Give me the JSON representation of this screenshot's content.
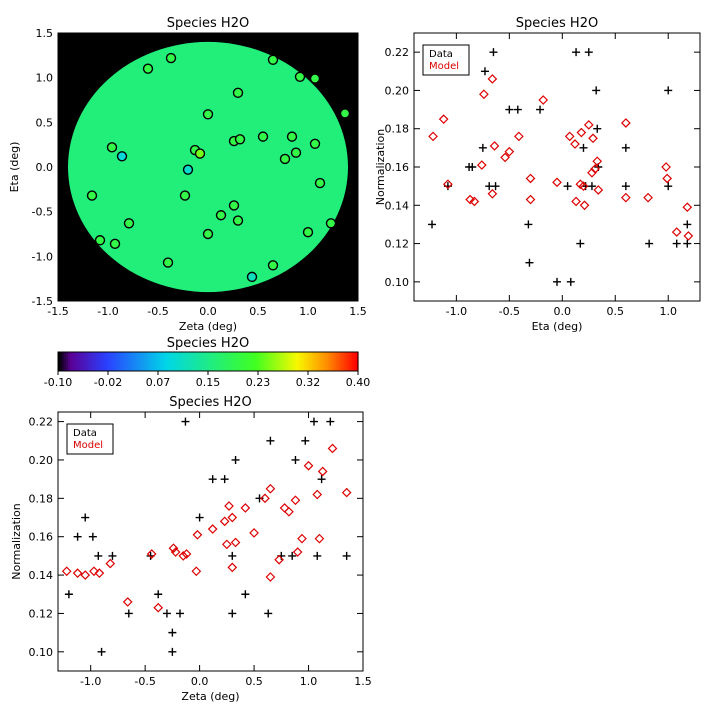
{
  "chart_data": [
    {
      "type": "scatter",
      "title": "Species H2O",
      "xlabel": "Zeta (deg)",
      "ylabel": "Eta (deg)",
      "xlim": [
        -1.5,
        1.5
      ],
      "ylim": [
        -1.5,
        1.5
      ],
      "x_ticks": [
        "-1.5",
        "-1.0",
        "-0.5",
        "0.0",
        "0.5",
        "1.0",
        "1.5"
      ],
      "y_ticks": [
        "-1.5",
        "-1.0",
        "-0.5",
        "0.0",
        "0.5",
        "1.0",
        "1.5"
      ],
      "background": {
        "outside": "#000000",
        "field_radius_deg": 1.4,
        "field_color": "#22ee7a"
      },
      "points": [
        {
          "x": -0.6,
          "y": 1.1,
          "value": 0.2
        },
        {
          "x": -0.37,
          "y": 1.22,
          "value": 0.2
        },
        {
          "x": 0.65,
          "y": 1.2,
          "value": 0.2
        },
        {
          "x": 0.92,
          "y": 1.01,
          "value": 0.2
        },
        {
          "x": 1.07,
          "y": 0.99,
          "value": 0.2
        },
        {
          "x": 0.3,
          "y": 0.83,
          "value": 0.2
        },
        {
          "x": 1.37,
          "y": 0.6,
          "value": 0.2
        },
        {
          "x": 0.0,
          "y": 0.59,
          "value": 0.2
        },
        {
          "x": 0.55,
          "y": 0.34,
          "value": 0.2
        },
        {
          "x": 0.84,
          "y": 0.34,
          "value": 0.2
        },
        {
          "x": 0.26,
          "y": 0.29,
          "value": 0.2
        },
        {
          "x": 0.32,
          "y": 0.31,
          "value": 0.2
        },
        {
          "x": -0.96,
          "y": 0.22,
          "value": 0.2
        },
        {
          "x": -0.86,
          "y": 0.12,
          "value": 0.09
        },
        {
          "x": -0.13,
          "y": 0.19,
          "value": 0.2
        },
        {
          "x": -0.08,
          "y": 0.15,
          "value": 0.25
        },
        {
          "x": 0.88,
          "y": 0.16,
          "value": 0.2
        },
        {
          "x": 0.77,
          "y": 0.09,
          "value": 0.2
        },
        {
          "x": 1.07,
          "y": 0.26,
          "value": 0.2
        },
        {
          "x": -0.2,
          "y": -0.03,
          "value": 0.1
        },
        {
          "x": 1.12,
          "y": -0.18,
          "value": 0.2
        },
        {
          "x": -1.16,
          "y": -0.32,
          "value": 0.2
        },
        {
          "x": -0.23,
          "y": -0.32,
          "value": 0.2
        },
        {
          "x": 0.26,
          "y": -0.43,
          "value": 0.2
        },
        {
          "x": 0.13,
          "y": -0.54,
          "value": 0.2
        },
        {
          "x": 0.3,
          "y": -0.6,
          "value": 0.2
        },
        {
          "x": -0.79,
          "y": -0.63,
          "value": 0.2
        },
        {
          "x": 1.23,
          "y": -0.63,
          "value": 0.2
        },
        {
          "x": 1.0,
          "y": -0.73,
          "value": 0.2
        },
        {
          "x": 0.0,
          "y": -0.75,
          "value": 0.2
        },
        {
          "x": -1.08,
          "y": -0.82,
          "value": 0.2
        },
        {
          "x": -0.93,
          "y": -0.86,
          "value": 0.2
        },
        {
          "x": -0.4,
          "y": -1.07,
          "value": 0.2
        },
        {
          "x": 0.65,
          "y": -1.1,
          "value": 0.2
        },
        {
          "x": 0.44,
          "y": -1.23,
          "value": 0.11
        }
      ]
    },
    {
      "type": "colorbar",
      "title": "Species H2O",
      "range": [
        -0.1,
        0.4
      ],
      "tick_labels": [
        "-0.10",
        "-0.02",
        "0.07",
        "0.15",
        "0.23",
        "0.32",
        "0.40"
      ]
    },
    {
      "type": "scatter",
      "title": "Species H2O",
      "xlabel": "Eta (deg)",
      "ylabel": "Normalization",
      "xlim": [
        -1.4,
        1.3
      ],
      "ylim": [
        0.09,
        0.23
      ],
      "x_ticks": [
        "-1.0",
        "-0.5",
        "0.0",
        "0.5",
        "1.0"
      ],
      "y_ticks": [
        "0.10",
        "0.12",
        "0.14",
        "0.16",
        "0.18",
        "0.20",
        "0.22"
      ],
      "legend": {
        "position": "top-left",
        "entries": [
          "Data",
          "Model"
        ]
      },
      "series": [
        {
          "name": "Data",
          "marker": "plus",
          "color": "#000000",
          "points": [
            [
              -1.23,
              0.13
            ],
            [
              -1.1,
              0.21
            ],
            [
              -1.08,
              0.15
            ],
            [
              -0.88,
              0.16
            ],
            [
              -0.85,
              0.16
            ],
            [
              -0.75,
              0.17
            ],
            [
              -0.73,
              0.21
            ],
            [
              -0.69,
              0.15
            ],
            [
              -0.65,
              0.22
            ],
            [
              -0.63,
              0.15
            ],
            [
              -0.5,
              0.19
            ],
            [
              -0.42,
              0.19
            ],
            [
              -0.32,
              0.13
            ],
            [
              -0.31,
              0.11
            ],
            [
              -0.21,
              0.19
            ],
            [
              -0.05,
              0.1
            ],
            [
              0.05,
              0.15
            ],
            [
              0.08,
              0.1
            ],
            [
              0.13,
              0.22
            ],
            [
              0.17,
              0.12
            ],
            [
              0.2,
              0.17
            ],
            [
              0.22,
              0.15
            ],
            [
              0.25,
              0.22
            ],
            [
              0.28,
              0.15
            ],
            [
              0.32,
              0.2
            ],
            [
              0.33,
              0.18
            ],
            [
              0.34,
              0.16
            ],
            [
              0.6,
              0.17
            ],
            [
              0.6,
              0.15
            ],
            [
              0.82,
              0.12
            ],
            [
              1.0,
              0.15
            ],
            [
              1.0,
              0.2
            ],
            [
              1.08,
              0.12
            ],
            [
              1.18,
              0.13
            ],
            [
              1.18,
              0.12
            ]
          ]
        },
        {
          "name": "Model",
          "marker": "diamond",
          "color": "#dd0000",
          "points": [
            [
              -1.22,
              0.176
            ],
            [
              -1.12,
              0.185
            ],
            [
              -1.08,
              0.151
            ],
            [
              -0.87,
              0.143
            ],
            [
              -0.83,
              0.142
            ],
            [
              -0.76,
              0.161
            ],
            [
              -0.74,
              0.198
            ],
            [
              -0.66,
              0.206
            ],
            [
              -0.66,
              0.146
            ],
            [
              -0.64,
              0.171
            ],
            [
              -0.54,
              0.165
            ],
            [
              -0.5,
              0.168
            ],
            [
              -0.41,
              0.176
            ],
            [
              -0.3,
              0.154
            ],
            [
              -0.3,
              0.143
            ],
            [
              -0.18,
              0.195
            ],
            [
              -0.05,
              0.152
            ],
            [
              0.07,
              0.176
            ],
            [
              0.12,
              0.172
            ],
            [
              0.13,
              0.142
            ],
            [
              0.17,
              0.151
            ],
            [
              0.18,
              0.178
            ],
            [
              0.2,
              0.15
            ],
            [
              0.21,
              0.14
            ],
            [
              0.25,
              0.182
            ],
            [
              0.28,
              0.157
            ],
            [
              0.29,
              0.175
            ],
            [
              0.31,
              0.159
            ],
            [
              0.33,
              0.163
            ],
            [
              0.34,
              0.148
            ],
            [
              0.6,
              0.183
            ],
            [
              0.6,
              0.144
            ],
            [
              0.81,
              0.144
            ],
            [
              0.98,
              0.16
            ],
            [
              0.99,
              0.154
            ],
            [
              1.08,
              0.126
            ],
            [
              1.18,
              0.139
            ],
            [
              1.19,
              0.124
            ]
          ]
        }
      ]
    },
    {
      "type": "scatter",
      "title": "Species H2O",
      "xlabel": "Zeta (deg)",
      "ylabel": "Normalization",
      "xlim": [
        -1.3,
        1.5
      ],
      "ylim": [
        0.09,
        0.225
      ],
      "x_ticks": [
        "-1.0",
        "-0.5",
        "0.0",
        "0.5",
        "1.0",
        "1.5"
      ],
      "y_ticks": [
        "0.10",
        "0.12",
        "0.14",
        "0.16",
        "0.18",
        "0.20",
        "0.22"
      ],
      "legend": {
        "position": "top-left",
        "entries": [
          "Data",
          "Model"
        ]
      },
      "series": [
        {
          "name": "Data",
          "marker": "plus",
          "color": "#000000",
          "points": [
            [
              -1.2,
              0.13
            ],
            [
              -1.12,
              0.16
            ],
            [
              -1.05,
              0.17
            ],
            [
              -0.98,
              0.16
            ],
            [
              -0.93,
              0.15
            ],
            [
              -0.9,
              0.1
            ],
            [
              -0.8,
              0.15
            ],
            [
              -0.65,
              0.12
            ],
            [
              -0.45,
              0.15
            ],
            [
              -0.38,
              0.13
            ],
            [
              -0.3,
              0.12
            ],
            [
              -0.25,
              0.11
            ],
            [
              -0.25,
              0.1
            ],
            [
              -0.18,
              0.12
            ],
            [
              -0.13,
              0.22
            ],
            [
              0.0,
              0.17
            ],
            [
              0.12,
              0.19
            ],
            [
              0.23,
              0.19
            ],
            [
              0.3,
              0.15
            ],
            [
              0.3,
              0.12
            ],
            [
              0.33,
              0.2
            ],
            [
              0.42,
              0.13
            ],
            [
              0.55,
              0.18
            ],
            [
              0.63,
              0.12
            ],
            [
              0.65,
              0.21
            ],
            [
              0.75,
              0.15
            ],
            [
              0.85,
              0.15
            ],
            [
              0.88,
              0.2
            ],
            [
              0.97,
              0.21
            ],
            [
              1.05,
              0.22
            ],
            [
              1.08,
              0.15
            ],
            [
              1.12,
              0.19
            ],
            [
              1.2,
              0.22
            ],
            [
              1.35,
              0.15
            ]
          ]
        },
        {
          "name": "Model",
          "marker": "diamond",
          "color": "#dd0000",
          "points": [
            [
              -1.22,
              0.142
            ],
            [
              -1.12,
              0.141
            ],
            [
              -1.05,
              0.14
            ],
            [
              -0.97,
              0.142
            ],
            [
              -0.92,
              0.141
            ],
            [
              -0.82,
              0.146
            ],
            [
              -0.66,
              0.126
            ],
            [
              -0.44,
              0.151
            ],
            [
              -0.38,
              0.123
            ],
            [
              -0.24,
              0.154
            ],
            [
              -0.22,
              0.152
            ],
            [
              -0.15,
              0.15
            ],
            [
              -0.12,
              0.151
            ],
            [
              -0.03,
              0.142
            ],
            [
              -0.02,
              0.161
            ],
            [
              0.12,
              0.164
            ],
            [
              0.23,
              0.168
            ],
            [
              0.25,
              0.156
            ],
            [
              0.27,
              0.176
            ],
            [
              0.3,
              0.17
            ],
            [
              0.3,
              0.144
            ],
            [
              0.33,
              0.157
            ],
            [
              0.42,
              0.175
            ],
            [
              0.5,
              0.162
            ],
            [
              0.6,
              0.18
            ],
            [
              0.65,
              0.185
            ],
            [
              0.65,
              0.139
            ],
            [
              0.73,
              0.148
            ],
            [
              0.78,
              0.175
            ],
            [
              0.82,
              0.173
            ],
            [
              0.88,
              0.179
            ],
            [
              0.9,
              0.152
            ],
            [
              0.94,
              0.159
            ],
            [
              1.0,
              0.197
            ],
            [
              1.08,
              0.182
            ],
            [
              1.1,
              0.159
            ],
            [
              1.13,
              0.194
            ],
            [
              1.22,
              0.206
            ],
            [
              1.35,
              0.183
            ]
          ]
        }
      ]
    }
  ]
}
